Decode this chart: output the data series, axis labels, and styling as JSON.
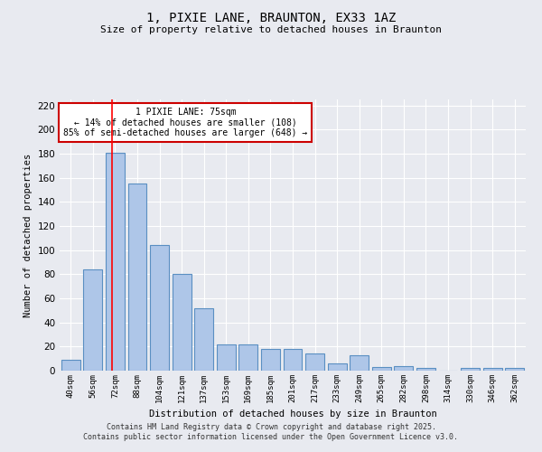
{
  "title": "1, PIXIE LANE, BRAUNTON, EX33 1AZ",
  "subtitle": "Size of property relative to detached houses in Braunton",
  "xlabel": "Distribution of detached houses by size in Braunton",
  "ylabel": "Number of detached properties",
  "categories": [
    "40sqm",
    "56sqm",
    "72sqm",
    "88sqm",
    "104sqm",
    "121sqm",
    "137sqm",
    "153sqm",
    "169sqm",
    "185sqm",
    "201sqm",
    "217sqm",
    "233sqm",
    "249sqm",
    "265sqm",
    "282sqm",
    "298sqm",
    "314sqm",
    "330sqm",
    "346sqm",
    "362sqm"
  ],
  "values": [
    9,
    84,
    181,
    155,
    104,
    80,
    52,
    22,
    22,
    18,
    18,
    14,
    6,
    13,
    3,
    4,
    2,
    0,
    2,
    2,
    2
  ],
  "bar_color": "#aec6e8",
  "bar_edge_color": "#5a8fc2",
  "background_color": "#e8eaf0",
  "grid_color": "#ffffff",
  "red_line_x": 1.85,
  "annotation_text": "1 PIXIE LANE: 75sqm\n← 14% of detached houses are smaller (108)\n85% of semi-detached houses are larger (648) →",
  "annotation_box_color": "#ffffff",
  "annotation_box_edge_color": "#cc0000",
  "footer_line1": "Contains HM Land Registry data © Crown copyright and database right 2025.",
  "footer_line2": "Contains public sector information licensed under the Open Government Licence v3.0.",
  "ylim": [
    0,
    225
  ],
  "yticks": [
    0,
    20,
    40,
    60,
    80,
    100,
    120,
    140,
    160,
    180,
    200,
    220
  ]
}
